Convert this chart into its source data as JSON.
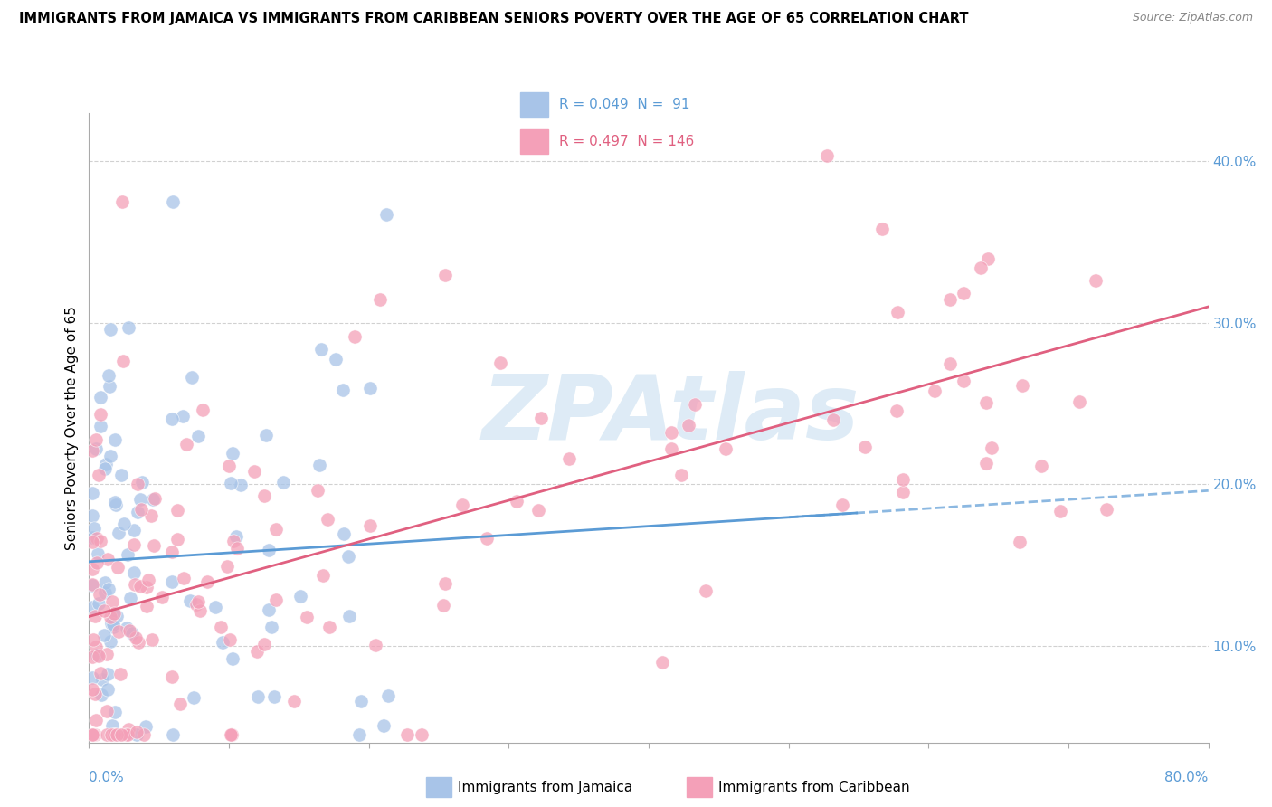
{
  "title": "IMMIGRANTS FROM JAMAICA VS IMMIGRANTS FROM CARIBBEAN SENIORS POVERTY OVER THE AGE OF 65 CORRELATION CHART",
  "source": "Source: ZipAtlas.com",
  "ylabel": "Seniors Poverty Over the Age of 65",
  "yticks": [
    0.1,
    0.2,
    0.3,
    0.4
  ],
  "ytick_labels": [
    "10.0%",
    "20.0%",
    "30.0%",
    "40.0%"
  ],
  "xlim": [
    0.0,
    0.8
  ],
  "ylim": [
    0.04,
    0.43
  ],
  "series": [
    {
      "label": "Immigrants from Jamaica",
      "R": 0.049,
      "N": 91,
      "dot_color": "#a8c4e8",
      "trend_color": "#5b9bd5",
      "trend_style": "-",
      "trend_slope": 0.055,
      "trend_intercept": 0.152
    },
    {
      "label": "Immigrants from Caribbean",
      "R": 0.497,
      "N": 146,
      "dot_color": "#f4a0b8",
      "trend_color": "#e06080",
      "trend_style": "--",
      "trend_slope": 0.24,
      "trend_intercept": 0.118
    }
  ],
  "watermark_text": "ZPAtlas",
  "watermark_color": "#c8dff0",
  "background_color": "#ffffff",
  "grid_color": "#cccccc",
  "title_fontsize": 10.5,
  "source_fontsize": 9,
  "axis_tick_color": "#5b9bd5",
  "legend_R_colors": [
    "#5b9bd5",
    "#e06080"
  ],
  "bottom_legend_labels": [
    "Immigrants from Jamaica",
    "Immigrants from Caribbean"
  ],
  "bottom_legend_colors": [
    "#a8c4e8",
    "#f4a0b8"
  ]
}
